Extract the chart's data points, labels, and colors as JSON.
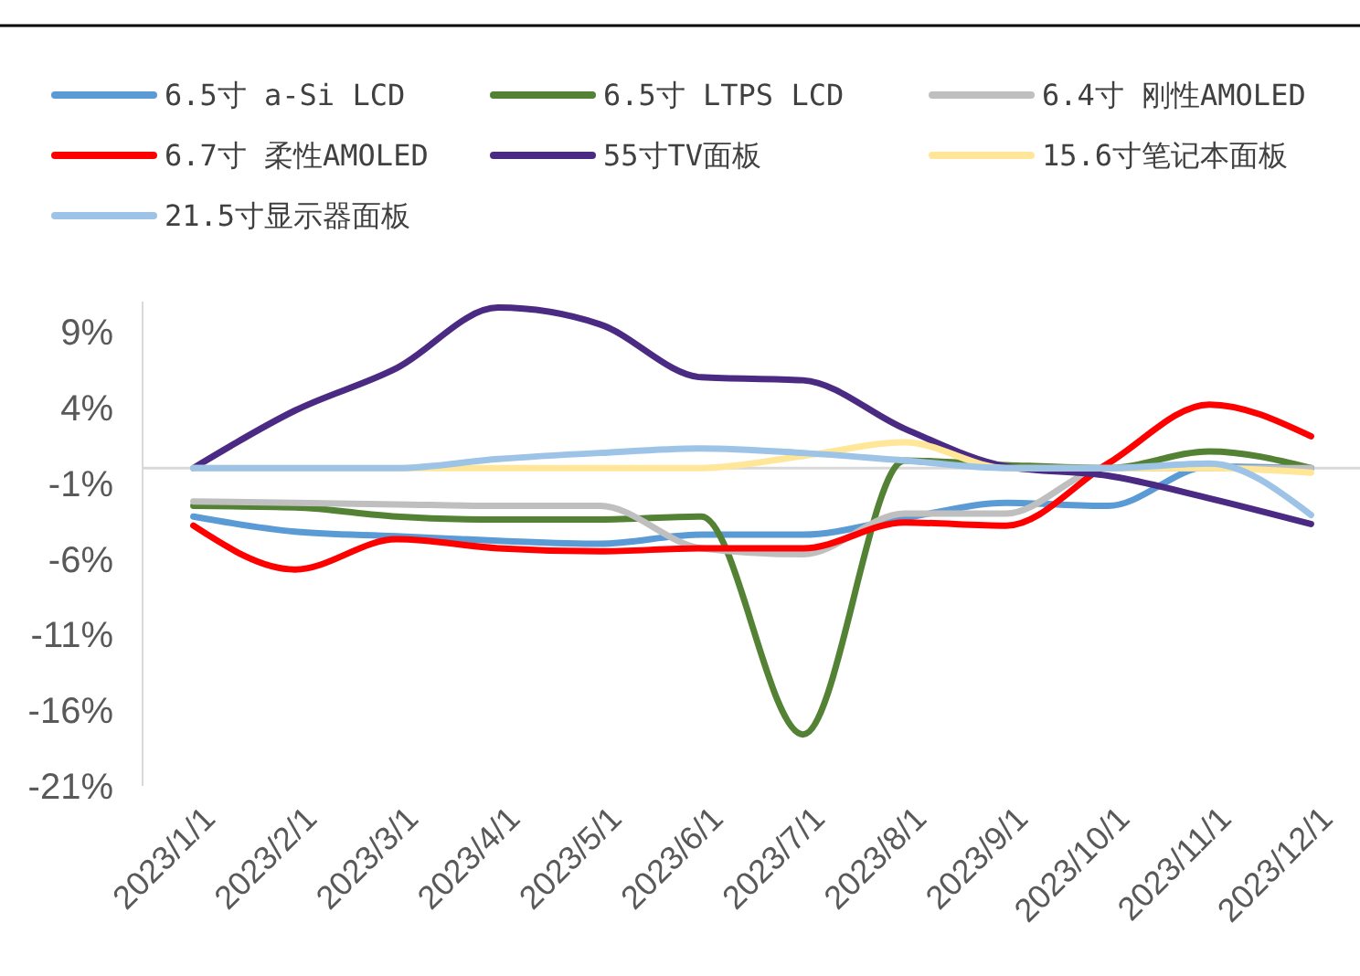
{
  "chart_data": {
    "type": "line",
    "categories": [
      "2023/1/1",
      "2023/2/1",
      "2023/3/1",
      "2023/4/1",
      "2023/5/1",
      "2023/6/1",
      "2023/7/1",
      "2023/8/1",
      "2023/9/1",
      "2023/10/1",
      "2023/11/1",
      "2023/12/1"
    ],
    "series": [
      {
        "name": "6.5寸 a-Si LCD",
        "color": "#5b9bd5",
        "values": [
          -3.2,
          -4.2,
          -4.5,
          -4.8,
          -5.0,
          -4.4,
          -4.4,
          -3.3,
          -2.3,
          -2.5,
          0.1,
          0
        ]
      },
      {
        "name": "6.5寸 LTPS LCD",
        "color": "#548235",
        "values": [
          -2.5,
          -2.6,
          -3.2,
          -3.4,
          -3.4,
          -3.2,
          -17.6,
          0.5,
          0.2,
          0,
          1.1,
          0
        ]
      },
      {
        "name": "6.4寸 刚性AMOLED",
        "color": "#bfbfbf",
        "values": [
          -2.2,
          -2.3,
          -2.4,
          -2.5,
          -2.5,
          -5.3,
          -5.7,
          -3.0,
          -3.0,
          0,
          0,
          0
        ]
      },
      {
        "name": "6.7寸 柔性AMOLED",
        "color": "#ff0000",
        "values": [
          -3.8,
          -6.7,
          -4.7,
          -5.3,
          -5.5,
          -5.3,
          -5.3,
          -3.6,
          -3.8,
          0.3,
          4.2,
          2.1
        ]
      },
      {
        "name": "55寸TV面板",
        "color": "#4b2a83",
        "values": [
          0,
          3.8,
          6.6,
          10.6,
          9.5,
          6.0,
          5.8,
          2.6,
          0.1,
          -0.5,
          -2.0,
          -3.7
        ]
      },
      {
        "name": "15.6寸笔记本面板",
        "color": "#ffe699",
        "values": [
          0,
          0,
          0,
          0,
          0,
          0,
          0.8,
          1.7,
          0,
          0,
          0,
          -0.3
        ]
      },
      {
        "name": "21.5寸显示器面板",
        "color": "#9dc3e6",
        "values": [
          0,
          0,
          0,
          0.6,
          1.0,
          1.3,
          1.0,
          0.5,
          0,
          0,
          0.3,
          -3.1
        ]
      }
    ],
    "ylim": [
      -21,
      11
    ],
    "yticks": [
      {
        "value": -21,
        "label": "-21%"
      },
      {
        "value": -16,
        "label": "-16%"
      },
      {
        "value": -11,
        "label": "-11%"
      },
      {
        "value": -6,
        "label": "-6%"
      },
      {
        "value": -1,
        "label": "-1%"
      },
      {
        "value": 4,
        "label": "4%"
      },
      {
        "value": 9,
        "label": "9%"
      }
    ],
    "legend": "top",
    "grid": false,
    "marker": "none",
    "line_style": "solid"
  }
}
